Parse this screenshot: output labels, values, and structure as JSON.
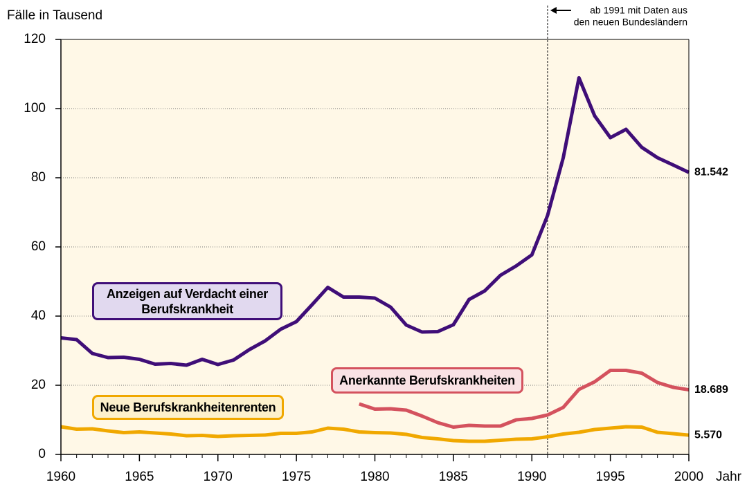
{
  "chart_data": {
    "type": "line",
    "y_label": "Fälle in Tausend",
    "x_label": "Jahr",
    "xlim": [
      1960,
      2000
    ],
    "xticks": [
      1960,
      1965,
      1970,
      1975,
      1980,
      1985,
      1990,
      1995,
      2000
    ],
    "ylim": [
      0,
      120
    ],
    "yticks": [
      0,
      20,
      40,
      60,
      80,
      100,
      120
    ],
    "grid": true,
    "x": [
      1960,
      1961,
      1962,
      1963,
      1964,
      1965,
      1966,
      1967,
      1968,
      1969,
      1970,
      1971,
      1972,
      1973,
      1974,
      1975,
      1976,
      1977,
      1978,
      1979,
      1980,
      1981,
      1982,
      1983,
      1984,
      1985,
      1986,
      1987,
      1988,
      1989,
      1990,
      1991,
      1992,
      1993,
      1994,
      1995,
      1996,
      1997,
      1998,
      1999,
      2000
    ],
    "series": [
      {
        "name": "Anzeigen auf Verdacht einer Berufskrankheit",
        "color": "#3f0e78",
        "box_fill": "#e1d9ef",
        "end_label": "81.542",
        "values": [
          33.7,
          33.2,
          29.2,
          28.0,
          28.1,
          27.5,
          26.1,
          26.3,
          25.8,
          27.5,
          26.0,
          27.3,
          30.3,
          32.8,
          36.2,
          38.4,
          43.3,
          48.3,
          45.5,
          45.5,
          45.2,
          42.6,
          37.4,
          35.4,
          35.5,
          37.5,
          44.8,
          47.3,
          51.8,
          54.5,
          57.7,
          69.1,
          85.8,
          108.9,
          97.9,
          91.6,
          94.0,
          88.8,
          85.8,
          83.7,
          81.542
        ]
      },
      {
        "name": "Anerkannte Berufskrankheiten",
        "color": "#d4525e",
        "box_fill": "#f9e2e4",
        "end_label": "18.689",
        "values": [
          null,
          null,
          null,
          null,
          null,
          null,
          null,
          null,
          null,
          null,
          null,
          null,
          null,
          null,
          null,
          null,
          null,
          null,
          null,
          14.6,
          13.1,
          13.2,
          12.8,
          11.1,
          9.2,
          7.9,
          8.4,
          8.2,
          8.2,
          10.0,
          10.4,
          11.4,
          13.6,
          18.8,
          21.0,
          24.3,
          24.3,
          23.5,
          20.8,
          19.4,
          18.689
        ]
      },
      {
        "name": "Neue Berufskrankheitenrenten",
        "color": "#f0a800",
        "box_fill": "#fdf1cc",
        "end_label": "5.570",
        "values": [
          8.0,
          7.3,
          7.4,
          6.8,
          6.3,
          6.5,
          6.2,
          5.9,
          5.4,
          5.5,
          5.2,
          5.4,
          5.5,
          5.6,
          6.1,
          6.1,
          6.5,
          7.6,
          7.3,
          6.5,
          6.3,
          6.2,
          5.8,
          4.9,
          4.5,
          4.0,
          3.8,
          3.8,
          4.1,
          4.4,
          4.5,
          5.1,
          5.9,
          6.4,
          7.2,
          7.6,
          8.0,
          7.9,
          6.4,
          6.0,
          5.57
        ]
      }
    ],
    "annotation": {
      "x": 1991,
      "lines": [
        "ab 1991 mit Daten aus",
        "den neuen Bundesländern"
      ]
    }
  }
}
